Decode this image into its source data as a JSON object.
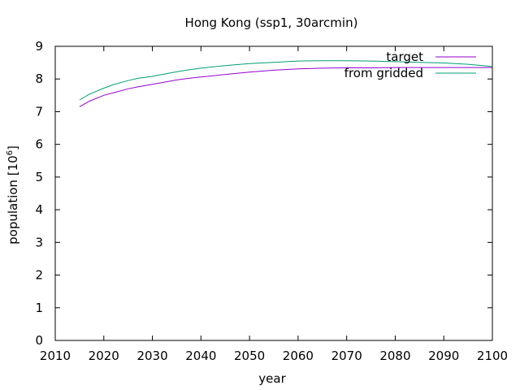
{
  "chart_data": {
    "type": "line",
    "title": "Hong Kong (ssp1, 30arcmin)",
    "xlabel": "year",
    "ylabel": "population [10",
    "ylabel_sup": "6",
    "ylabel_end": "]",
    "xlim": [
      2010,
      2100
    ],
    "ylim": [
      0,
      9
    ],
    "xticks": [
      2010,
      2020,
      2030,
      2040,
      2050,
      2060,
      2070,
      2080,
      2090,
      2100
    ],
    "yticks": [
      0,
      1,
      2,
      3,
      4,
      5,
      6,
      7,
      8,
      9
    ],
    "legend_position": "top-right",
    "grid": false,
    "x": [
      2015,
      2017,
      2020,
      2022,
      2025,
      2027,
      2030,
      2032,
      2035,
      2037,
      2040,
      2045,
      2050,
      2055,
      2060,
      2065,
      2070,
      2075,
      2080,
      2085,
      2090,
      2095,
      2100
    ],
    "series": [
      {
        "name": "target",
        "color": "#9400d3",
        "values": [
          7.15,
          7.32,
          7.5,
          7.58,
          7.7,
          7.76,
          7.84,
          7.89,
          7.97,
          8.01,
          8.06,
          8.14,
          8.21,
          8.27,
          8.31,
          8.33,
          8.34,
          8.34,
          8.35,
          8.35,
          8.35,
          8.35,
          8.35
        ]
      },
      {
        "name": "from gridded",
        "color": "#009e73",
        "values": [
          7.36,
          7.53,
          7.72,
          7.83,
          7.95,
          8.02,
          8.08,
          8.14,
          8.22,
          8.27,
          8.33,
          8.41,
          8.47,
          8.51,
          8.55,
          8.56,
          8.56,
          8.55,
          8.53,
          8.51,
          8.49,
          8.45,
          8.38
        ]
      }
    ]
  }
}
